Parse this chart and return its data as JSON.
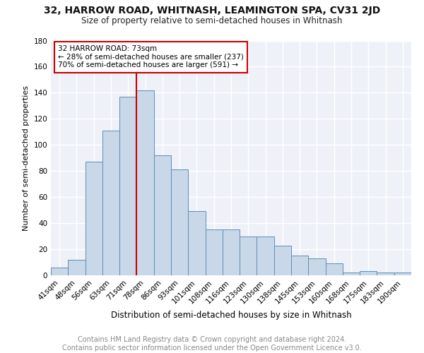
{
  "title1": "32, HARROW ROAD, WHITNASH, LEAMINGTON SPA, CV31 2JD",
  "title2": "Size of property relative to semi-detached houses in Whitnash",
  "xlabel": "Distribution of semi-detached houses by size in Whitnash",
  "ylabel": "Number of semi-detached properties",
  "categories": [
    "41sqm",
    "48sqm",
    "56sqm",
    "63sqm",
    "71sqm",
    "78sqm",
    "86sqm",
    "93sqm",
    "101sqm",
    "108sqm",
    "116sqm",
    "123sqm",
    "130sqm",
    "138sqm",
    "145sqm",
    "153sqm",
    "160sqm",
    "168sqm",
    "175sqm",
    "183sqm",
    "190sqm"
  ],
  "values": [
    6,
    12,
    87,
    111,
    137,
    142,
    92,
    81,
    49,
    35,
    35,
    30,
    30,
    23,
    15,
    13,
    9,
    2,
    3,
    2,
    2
  ],
  "bar_color": "#c8d8e8",
  "bar_edge_color": "#5b8db8",
  "vline_x": 4.5,
  "vline_label": "32 HARROW ROAD: 73sqm",
  "annotation_line1": "← 28% of semi-detached houses are smaller (237)",
  "annotation_line2": "70% of semi-detached houses are larger (591) →",
  "annotation_box_color": "#ffffff",
  "annotation_box_edge": "#cc0000",
  "vline_color": "#cc0000",
  "ylim": [
    0,
    180
  ],
  "yticks": [
    0,
    20,
    40,
    60,
    80,
    100,
    120,
    140,
    160,
    180
  ],
  "footer": "Contains HM Land Registry data © Crown copyright and database right 2024.\nContains public sector information licensed under the Open Government Licence v3.0.",
  "background_color": "#eef2f8",
  "grid_color": "#ffffff",
  "title1_fontsize": 10,
  "title2_fontsize": 8.5,
  "xlabel_fontsize": 8.5,
  "ylabel_fontsize": 8,
  "tick_fontsize": 7.5,
  "annot_fontsize": 7.5,
  "footer_fontsize": 7
}
